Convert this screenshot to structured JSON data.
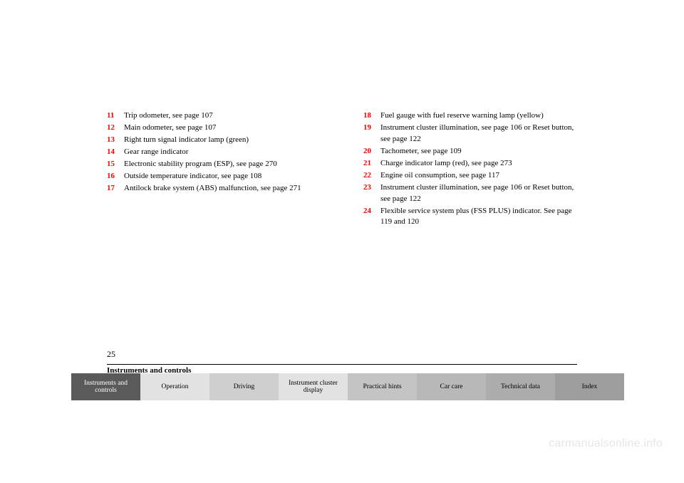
{
  "leftItems": [
    {
      "num": "11",
      "label": "Trip odometer, see page 107"
    },
    {
      "num": "12",
      "label": "Main odometer, see page 107"
    },
    {
      "num": "13",
      "label": "Right turn signal indicator lamp (green)"
    },
    {
      "num": "14",
      "label": "Gear range indicator"
    },
    {
      "num": "15",
      "label": "Electronic stability program (ESP), see page 270"
    },
    {
      "num": "16",
      "label": "Outside temperature indicator, see page 108"
    },
    {
      "num": "17",
      "label": "Antilock brake system (ABS) malfunction, see page 271"
    }
  ],
  "rightItems": [
    {
      "num": "18",
      "label": "Fuel gauge with fuel reserve warning lamp (yellow)"
    },
    {
      "num": "19",
      "label": "Instrument cluster illumination, see page 106 or Reset button, see page 122"
    },
    {
      "num": "20",
      "label": "Tachometer, see page 109"
    },
    {
      "num": "21",
      "label": "Charge indicator lamp (red), see page 273"
    },
    {
      "num": "22",
      "label": "Engine oil consumption, see page 117"
    },
    {
      "num": "23",
      "label": "Instrument cluster illumination, see page 106 or Reset button, see page 122"
    },
    {
      "num": "24",
      "label": "Flexible service system plus (FSS PLUS) indicator. See page 119 and 120"
    }
  ],
  "pageNumber": "25",
  "sectionTitle": "Instruments and controls",
  "tabs": [
    {
      "label": "Instruments and controls",
      "bg": "#5a5a5a",
      "fg": "#ffffff"
    },
    {
      "label": "Operation",
      "bg": "#e2e2e2",
      "fg": "#000000"
    },
    {
      "label": "Driving",
      "bg": "#cfcfcf",
      "fg": "#000000"
    },
    {
      "label": "Instrument cluster display",
      "bg": "#e2e2e2",
      "fg": "#000000"
    },
    {
      "label": "Practical hints",
      "bg": "#c4c4c4",
      "fg": "#000000"
    },
    {
      "label": "Car care",
      "bg": "#b8b8b8",
      "fg": "#000000"
    },
    {
      "label": "Technical data",
      "bg": "#acacac",
      "fg": "#000000"
    },
    {
      "label": "Index",
      "bg": "#9e9e9e",
      "fg": "#000000"
    }
  ],
  "watermark": "carmanualsonline.info"
}
